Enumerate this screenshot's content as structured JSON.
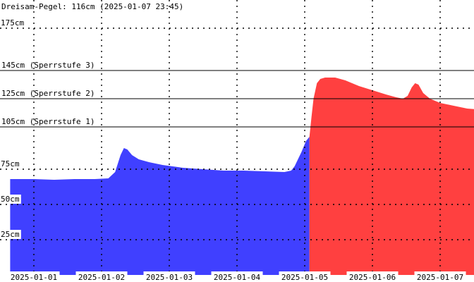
{
  "header": {
    "text": "Dreisam-Pegel: 116cm (2025-01-07 23:45)"
  },
  "chart_data": {
    "type": "area",
    "title": "Dreisam-Pegel: 116cm (2025-01-07 23:45)",
    "xlabel": "",
    "ylabel": "",
    "ylim": [
      0,
      195
    ],
    "grid": true,
    "y_ticks": [
      {
        "value": 25,
        "label": "25cm"
      },
      {
        "value": 50,
        "label": "50cm"
      },
      {
        "value": 75,
        "label": "75cm"
      },
      {
        "value": 175,
        "label": "175cm"
      }
    ],
    "thresholds": [
      {
        "value": 105,
        "label": "105cm (Sperrstufe 1)"
      },
      {
        "value": 125,
        "label": "125cm (Sperrstufe 2)"
      },
      {
        "value": 145,
        "label": "145cm (Sperrstufe 3)"
      }
    ],
    "x_ticks": [
      {
        "day": 0,
        "label": "2025-01-01"
      },
      {
        "day": 1,
        "label": "2025-01-02"
      },
      {
        "day": 2,
        "label": "2025-01-03"
      },
      {
        "day": 3,
        "label": "2025-01-04"
      },
      {
        "day": 4,
        "label": "2025-01-05"
      },
      {
        "day": 5,
        "label": "2025-01-06"
      },
      {
        "day": 6,
        "label": "2025-01-07"
      }
    ],
    "x_range_days": [
      -0.35,
      6.65
    ],
    "series": [
      {
        "color": "#4040ff",
        "points": [
          [
            -0.35,
            68
          ],
          [
            0.0,
            68
          ],
          [
            0.3,
            67.5
          ],
          [
            0.6,
            68
          ],
          [
            0.9,
            68
          ],
          [
            1.1,
            68.5
          ],
          [
            1.2,
            73
          ],
          [
            1.28,
            85
          ],
          [
            1.33,
            90
          ],
          [
            1.38,
            89
          ],
          [
            1.45,
            85
          ],
          [
            1.55,
            82
          ],
          [
            1.7,
            80
          ],
          [
            1.9,
            78
          ],
          [
            2.2,
            76
          ],
          [
            2.5,
            75
          ],
          [
            2.8,
            74
          ],
          [
            3.1,
            74
          ],
          [
            3.4,
            73.5
          ],
          [
            3.7,
            73
          ],
          [
            3.8,
            74
          ],
          [
            3.85,
            77
          ],
          [
            3.9,
            82
          ],
          [
            3.95,
            87
          ],
          [
            4.02,
            95
          ],
          [
            4.07,
            98
          ]
        ]
      },
      {
        "color": "#ff4040",
        "points": [
          [
            4.07,
            98
          ],
          [
            4.1,
            112
          ],
          [
            4.13,
            125
          ],
          [
            4.18,
            136
          ],
          [
            4.23,
            139
          ],
          [
            4.3,
            140
          ],
          [
            4.45,
            140
          ],
          [
            4.6,
            138
          ],
          [
            4.8,
            134
          ],
          [
            5.0,
            131
          ],
          [
            5.2,
            128
          ],
          [
            5.35,
            126
          ],
          [
            5.45,
            125
          ],
          [
            5.52,
            127
          ],
          [
            5.58,
            133
          ],
          [
            5.63,
            136
          ],
          [
            5.68,
            135
          ],
          [
            5.75,
            129
          ],
          [
            5.85,
            125
          ],
          [
            6.0,
            122
          ],
          [
            6.2,
            120
          ],
          [
            6.4,
            118
          ],
          [
            6.65,
            117
          ]
        ]
      }
    ]
  },
  "colors": {
    "background": "#ffffff",
    "grid": "#000000",
    "threshold_line": "#000000"
  }
}
